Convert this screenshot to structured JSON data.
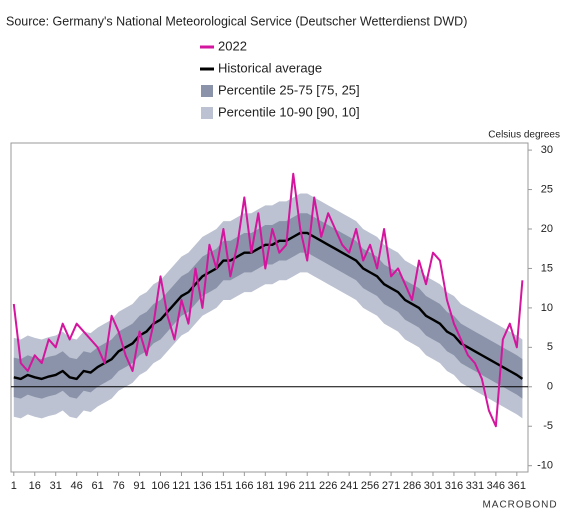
{
  "chart_data": {
    "type": "line",
    "source": "Source: Germany's National Meteorological Service (Deutscher Wetterdienst DWD)",
    "y_label": "Celsius degrees",
    "logo": "MACROBOND",
    "x": [
      1,
      6,
      11,
      16,
      21,
      26,
      31,
      36,
      41,
      46,
      51,
      56,
      61,
      66,
      71,
      76,
      81,
      86,
      91,
      96,
      101,
      106,
      111,
      116,
      121,
      126,
      131,
      136,
      141,
      146,
      151,
      156,
      161,
      166,
      171,
      176,
      181,
      186,
      191,
      196,
      201,
      206,
      211,
      216,
      221,
      226,
      231,
      236,
      241,
      246,
      251,
      256,
      261,
      266,
      271,
      276,
      281,
      286,
      291,
      296,
      301,
      306,
      311,
      316,
      321,
      326,
      331,
      336,
      341,
      346,
      351,
      356,
      361,
      365
    ],
    "xlim": [
      -1,
      369
    ],
    "xticks": [
      1,
      16,
      31,
      46,
      61,
      76,
      91,
      106,
      121,
      136,
      151,
      166,
      181,
      196,
      211,
      226,
      241,
      256,
      271,
      286,
      301,
      316,
      331,
      346,
      361
    ],
    "ylim": [
      -10.8,
      30.9
    ],
    "yticks": [
      -10,
      -5,
      0,
      5,
      10,
      15,
      20,
      25,
      30
    ],
    "series": [
      {
        "name": "2022",
        "color": "#d4159e",
        "kind": "line",
        "values": [
          10.5,
          3,
          2,
          4,
          3,
          6,
          5,
          8,
          6,
          8,
          7,
          6,
          5,
          3,
          9,
          7,
          4,
          2,
          7,
          4,
          8,
          14,
          9,
          6,
          11,
          8,
          15,
          10,
          18,
          15,
          20,
          14,
          18,
          24,
          17,
          22,
          15,
          20,
          17,
          18,
          27,
          20,
          16,
          24,
          19,
          22,
          20,
          18,
          17,
          20,
          16,
          18,
          15,
          20,
          14,
          15,
          13,
          11,
          16,
          13,
          17,
          16,
          11,
          8,
          6,
          4,
          3,
          1,
          -3,
          -5,
          6,
          8,
          5,
          13.5
        ]
      },
      {
        "name": "Historical average",
        "color": "#000000",
        "kind": "line",
        "values": [
          1.2,
          1.0,
          1.5,
          1.2,
          1.0,
          1.3,
          1.5,
          2.0,
          1.2,
          1.0,
          2.0,
          1.8,
          2.5,
          3.0,
          3.5,
          4.5,
          5.0,
          5.5,
          6.5,
          7.0,
          8.0,
          8.5,
          9.5,
          10.5,
          11.5,
          12.0,
          13.0,
          14.0,
          14.5,
          15.0,
          16.0,
          16.0,
          16.5,
          17.0,
          17.0,
          17.5,
          18.0,
          18.0,
          18.5,
          18.5,
          19.0,
          19.5,
          19.5,
          19.0,
          18.5,
          18.0,
          17.5,
          17.0,
          16.5,
          16.0,
          15.0,
          14.5,
          14.0,
          13.0,
          12.5,
          12.0,
          11.0,
          10.5,
          10.0,
          9.0,
          8.5,
          8.0,
          7.0,
          6.5,
          5.5,
          5.0,
          4.5,
          4.0,
          3.5,
          3.0,
          2.5,
          2.0,
          1.5,
          1.0
        ]
      },
      {
        "name": "Percentile 25-75 [75, 25]",
        "color": "#8a93a9",
        "kind": "band",
        "values": [
          3.7,
          3.5,
          4.0,
          3.7,
          3.5,
          3.8,
          4.0,
          4.5,
          3.7,
          3.5,
          4.5,
          4.3,
          5.0,
          5.5,
          6.0,
          7.0,
          7.5,
          8.0,
          9.0,
          9.5,
          10.5,
          11.0,
          12.0,
          13.0,
          14.0,
          14.5,
          15.5,
          16.5,
          17.0,
          17.5,
          18.5,
          18.5,
          19.0,
          19.5,
          19.5,
          20.0,
          20.5,
          20.5,
          21.0,
          21.0,
          21.5,
          22.0,
          22.0,
          21.5,
          21.0,
          20.5,
          20.0,
          19.5,
          19.0,
          18.5,
          17.5,
          17.0,
          16.5,
          15.5,
          15.0,
          14.5,
          13.5,
          13.0,
          12.5,
          11.5,
          11.0,
          10.5,
          9.5,
          9.0,
          8.0,
          7.5,
          7.0,
          6.5,
          6.0,
          5.5,
          5.0,
          4.5,
          4.0,
          3.5
        ],
        "lower": [
          -1.3,
          -1.5,
          -1.0,
          -1.3,
          -1.5,
          -1.2,
          -1.0,
          -0.5,
          -1.3,
          -1.5,
          -0.5,
          -0.7,
          0.0,
          0.5,
          1.0,
          2.0,
          2.5,
          3.0,
          4.0,
          4.5,
          5.5,
          6.0,
          7.0,
          8.0,
          9.0,
          9.5,
          10.5,
          11.5,
          12.0,
          12.5,
          13.5,
          13.5,
          14.0,
          14.5,
          14.5,
          15.0,
          15.5,
          15.5,
          16.0,
          16.0,
          16.5,
          17.0,
          17.0,
          16.5,
          16.0,
          15.5,
          15.0,
          14.5,
          14.0,
          13.5,
          12.5,
          12.0,
          11.5,
          10.5,
          10.0,
          9.5,
          8.5,
          8.0,
          7.5,
          6.5,
          6.0,
          5.5,
          4.5,
          4.0,
          3.0,
          2.5,
          2.0,
          1.5,
          1.0,
          0.5,
          0.0,
          -0.5,
          -1.0,
          -1.5
        ]
      },
      {
        "name": "Percentile 10-90 [90, 10]",
        "color": "#bcc2d1",
        "kind": "band",
        "values": [
          6.2,
          6.0,
          6.5,
          6.2,
          6.0,
          6.3,
          6.5,
          7.0,
          6.2,
          6.0,
          7.0,
          6.8,
          7.5,
          8.0,
          8.5,
          9.5,
          10.0,
          10.5,
          11.5,
          12.0,
          13.0,
          13.5,
          14.5,
          15.5,
          16.5,
          17.0,
          18.0,
          19.0,
          19.5,
          20.0,
          21.0,
          21.0,
          21.5,
          22.0,
          22.0,
          22.5,
          23.0,
          23.0,
          23.5,
          23.5,
          24.0,
          24.5,
          24.5,
          24.0,
          23.5,
          23.0,
          22.5,
          22.0,
          21.5,
          21.0,
          20.0,
          19.5,
          19.0,
          18.0,
          17.5,
          17.0,
          16.0,
          15.5,
          15.0,
          14.0,
          13.5,
          13.0,
          12.0,
          11.5,
          10.5,
          10.0,
          9.5,
          9.0,
          8.5,
          8.0,
          7.5,
          7.0,
          6.5,
          6.0
        ],
        "lower": [
          -3.8,
          -4.0,
          -3.5,
          -3.8,
          -4.0,
          -3.7,
          -3.5,
          -3.0,
          -3.8,
          -4.0,
          -3.0,
          -3.2,
          -2.5,
          -2.0,
          -1.5,
          -0.5,
          0.0,
          0.5,
          1.5,
          2.0,
          3.0,
          3.5,
          4.5,
          5.5,
          6.5,
          7.0,
          8.0,
          9.0,
          9.5,
          10.0,
          11.0,
          11.0,
          11.5,
          12.0,
          12.0,
          12.5,
          13.0,
          13.0,
          13.5,
          13.5,
          14.0,
          14.5,
          14.5,
          14.0,
          13.5,
          13.0,
          12.5,
          12.0,
          11.5,
          11.0,
          10.0,
          9.5,
          9.0,
          8.0,
          7.5,
          7.0,
          6.0,
          5.5,
          5.0,
          4.0,
          3.5,
          3.0,
          2.0,
          1.5,
          0.5,
          0.0,
          -0.5,
          -1.0,
          -1.5,
          -2.0,
          -2.5,
          -3.0,
          -3.5,
          -4.0
        ]
      }
    ]
  }
}
